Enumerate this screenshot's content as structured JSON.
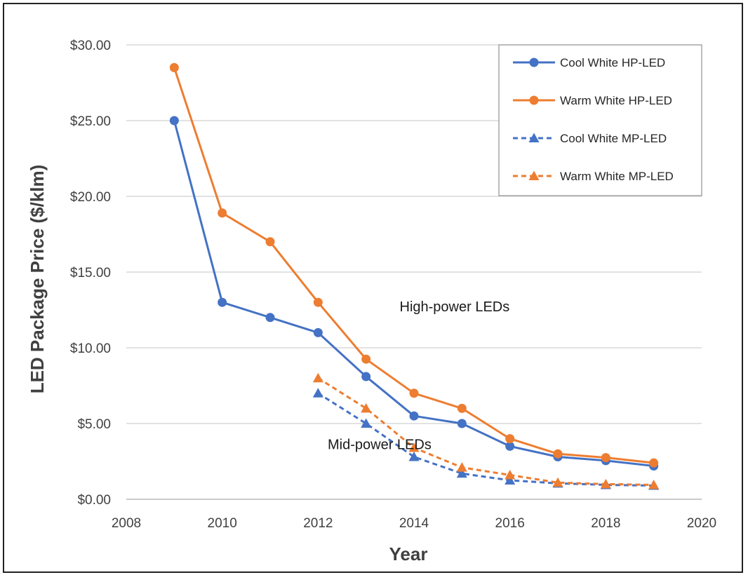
{
  "chart_data": {
    "type": "line",
    "title": "",
    "xlabel": "Year",
    "ylabel": "LED Package Price ($/klm)",
    "xlim": [
      2008,
      2020
    ],
    "ylim": [
      0,
      30
    ],
    "x_ticks": [
      "2008",
      "2010",
      "2012",
      "2014",
      "2016",
      "2018",
      "2020"
    ],
    "y_ticks": [
      "$0.00",
      "$5.00",
      "$10.00",
      "$15.00",
      "$20.00",
      "$25.00",
      "$30.00"
    ],
    "grid": "horizontal",
    "legend_position": "top-right",
    "series": [
      {
        "name": "Cool White HP-LED",
        "color": "#4472C4",
        "marker": "circle",
        "dash": "solid",
        "x": [
          2009,
          2010,
          2011,
          2012,
          2013,
          2014,
          2015,
          2016,
          2017,
          2018,
          2019
        ],
        "values": [
          25.0,
          13.0,
          12.0,
          11.0,
          8.1,
          5.5,
          5.0,
          3.5,
          2.8,
          2.55,
          2.2
        ]
      },
      {
        "name": "Warm White HP-LED",
        "color": "#ED7D31",
        "marker": "circle",
        "dash": "solid",
        "x": [
          2009,
          2010,
          2011,
          2012,
          2013,
          2014,
          2015,
          2016,
          2017,
          2018,
          2019
        ],
        "values": [
          28.5,
          18.9,
          17.0,
          13.0,
          9.25,
          7.0,
          6.0,
          4.0,
          3.0,
          2.75,
          2.4
        ]
      },
      {
        "name": "Cool White MP-LED",
        "color": "#4472C4",
        "marker": "triangle",
        "dash": "dashed",
        "x": [
          2012,
          2013,
          2014,
          2015,
          2016,
          2017,
          2018,
          2019
        ],
        "values": [
          7.0,
          5.0,
          2.8,
          1.7,
          1.25,
          1.05,
          0.95,
          0.9
        ]
      },
      {
        "name": "Warm White MP-LED",
        "color": "#ED7D31",
        "marker": "triangle",
        "dash": "dashed",
        "x": [
          2012,
          2013,
          2014,
          2015,
          2016,
          2017,
          2018,
          2019
        ],
        "values": [
          8.0,
          6.0,
          3.4,
          2.1,
          1.6,
          1.1,
          1.0,
          0.95
        ]
      }
    ],
    "annotations": [
      {
        "text": "High-power LEDs",
        "x": 2013.7,
        "y": 12.4
      },
      {
        "text": "Mid-power LEDs",
        "x": 2012.2,
        "y": 3.3
      }
    ]
  }
}
